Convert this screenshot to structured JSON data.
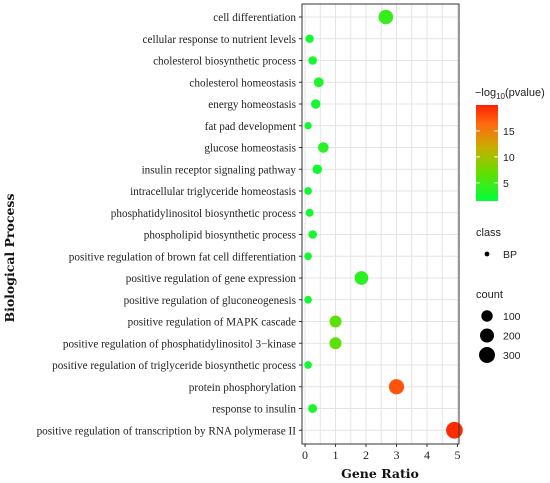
{
  "chart_data": {
    "type": "scatter",
    "xlabel": "Gene Ratio",
    "ylabel": "Biological Process",
    "xlim": [
      -0.1,
      5.05
    ],
    "x_ticks": [
      0,
      1,
      2,
      3,
      4,
      5
    ],
    "grid": true,
    "legend_position": "right",
    "terms": [
      {
        "label": "cell differentiation",
        "x": 2.65,
        "neglog10p": 4.5,
        "count": 230
      },
      {
        "label": "cellular response to nutrient levels",
        "x": 0.15,
        "neglog10p": 2.5,
        "count": 25
      },
      {
        "label": "cholesterol biosynthetic process",
        "x": 0.25,
        "neglog10p": 2.5,
        "count": 30
      },
      {
        "label": "cholesterol homeostasis",
        "x": 0.45,
        "neglog10p": 3.0,
        "count": 55
      },
      {
        "label": "energy homeostasis",
        "x": 0.35,
        "neglog10p": 2.5,
        "count": 45
      },
      {
        "label": "fat pad development",
        "x": 0.1,
        "neglog10p": 2.5,
        "count": 12
      },
      {
        "label": "glucose homeostasis",
        "x": 0.6,
        "neglog10p": 3.5,
        "count": 75
      },
      {
        "label": "insulin receptor signaling pathway",
        "x": 0.4,
        "neglog10p": 2.5,
        "count": 50
      },
      {
        "label": "intracellular triglyceride homeostasis",
        "x": 0.1,
        "neglog10p": 2.5,
        "count": 15
      },
      {
        "label": "phosphatidylinositol biosynthetic process",
        "x": 0.15,
        "neglog10p": 2.5,
        "count": 20
      },
      {
        "label": "phospholipid biosynthetic process",
        "x": 0.25,
        "neglog10p": 2.5,
        "count": 30
      },
      {
        "label": "positive regulation of brown fat cell differentiation",
        "x": 0.1,
        "neglog10p": 2.5,
        "count": 15
      },
      {
        "label": "positive regulation of gene expression",
        "x": 1.85,
        "neglog10p": 3.8,
        "count": 185
      },
      {
        "label": "positive regulation of gluconeogenesis",
        "x": 0.1,
        "neglog10p": 2.5,
        "count": 15
      },
      {
        "label": "positive regulation of MAPK cascade",
        "x": 1.0,
        "neglog10p": 6.5,
        "count": 120
      },
      {
        "label": "positive regulation of phosphatidylinositol 3−kinase",
        "x": 1.0,
        "neglog10p": 6.5,
        "count": 120
      },
      {
        "label": "positive regulation of triglyceride biosynthetic process",
        "x": 0.1,
        "neglog10p": 2.5,
        "count": 15
      },
      {
        "label": "protein phosphorylation",
        "x": 3.0,
        "neglog10p": 17.5,
        "count": 260
      },
      {
        "label": "response to insulin",
        "x": 0.25,
        "neglog10p": 2.8,
        "count": 35
      },
      {
        "label": "positive regulation of transcription by RNA polymerase II",
        "x": 4.9,
        "neglog10p": 19.5,
        "count": 345
      }
    ]
  },
  "legend": {
    "color_title_prefix": "−log",
    "color_title_sub": "10",
    "color_title_suffix": "(pvalue)",
    "color_ticks": [
      5,
      10,
      15
    ],
    "color_range": [
      1.5,
      20
    ],
    "color_low": "#00ff3a",
    "color_high": "#ff2200",
    "class_title": "class",
    "class_items": [
      "BP"
    ],
    "count_title": "count",
    "count_items": [
      100,
      200,
      300
    ]
  }
}
